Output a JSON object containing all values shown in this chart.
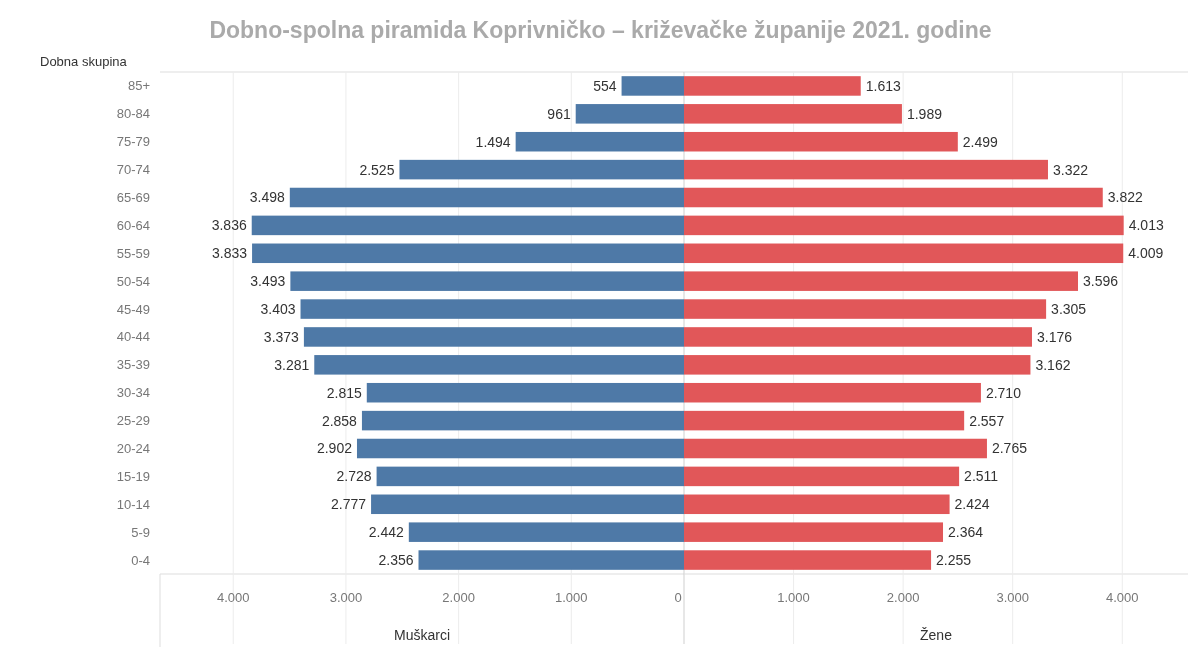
{
  "chart_data": [
    {
      "type": "bar",
      "orientation": "horizontal",
      "title": "Dobno-spolna piramida Koprivničko – križevačke županije 2021. godine",
      "ylabel": "Dobna skupina",
      "xlabel": "Muškarci",
      "categories": [
        "85+",
        "80-84",
        "75-79",
        "70-74",
        "65-69",
        "60-64",
        "55-59",
        "50-54",
        "45-49",
        "40-44",
        "35-39",
        "30-34",
        "25-29",
        "20-24",
        "15-19",
        "10-14",
        "5-9",
        "0-4"
      ],
      "values": [
        554,
        961,
        1494,
        2525,
        3498,
        3836,
        3833,
        3493,
        3403,
        3373,
        3281,
        2815,
        2858,
        2902,
        2728,
        2777,
        2442,
        2356
      ],
      "value_labels": [
        "554",
        "961",
        "1.494",
        "2.525",
        "3.498",
        "3.836",
        "3.833",
        "3.493",
        "3.403",
        "3.373",
        "3.281",
        "2.815",
        "2.858",
        "2.902",
        "2.728",
        "2.777",
        "2.442",
        "2.356"
      ],
      "color": "#4e79a7",
      "xlim": [
        4650,
        0
      ],
      "xticks": [
        {
          "value": 4000,
          "label": "4.000"
        },
        {
          "value": 3000,
          "label": "3.000"
        },
        {
          "value": 2000,
          "label": "2.000"
        },
        {
          "value": 1000,
          "label": "1.000"
        },
        0
      ],
      "grid": "x"
    },
    {
      "type": "bar",
      "orientation": "horizontal",
      "xlabel": "Žene",
      "tick_labels": "x",
      "categories": [
        "85+",
        "80-84",
        "75-79",
        "70-74",
        "65-69",
        "60-64",
        "55-59",
        "50-54",
        "45-49",
        "40-44",
        "35-39",
        "30-34",
        "25-29",
        "20-24",
        "15-19",
        "10-14",
        "5-9",
        "0-4"
      ],
      "values": [
        1613,
        1989,
        2499,
        3322,
        3822,
        4013,
        4009,
        3596,
        3305,
        3176,
        3162,
        2710,
        2557,
        2765,
        2511,
        2424,
        2364,
        2255
      ],
      "value_labels": [
        "1.613",
        "1.989",
        "2.499",
        "3.322",
        "3.822",
        "4.013",
        "4.009",
        "3.596",
        "3.305",
        "3.176",
        "3.162",
        "2.710",
        "2.557",
        "2.765",
        "2.511",
        "2.424",
        "2.364",
        "2.255"
      ],
      "color": "#e15759",
      "xlim": [
        0,
        4600
      ],
      "xticks": [
        {
          "value": 1000,
          "label": "1.000"
        },
        {
          "value": 2000,
          "label": "2.000"
        },
        {
          "value": 3000,
          "label": "3.000"
        },
        {
          "value": 4000,
          "label": "4.000"
        }
      ],
      "grid": "x"
    }
  ]
}
